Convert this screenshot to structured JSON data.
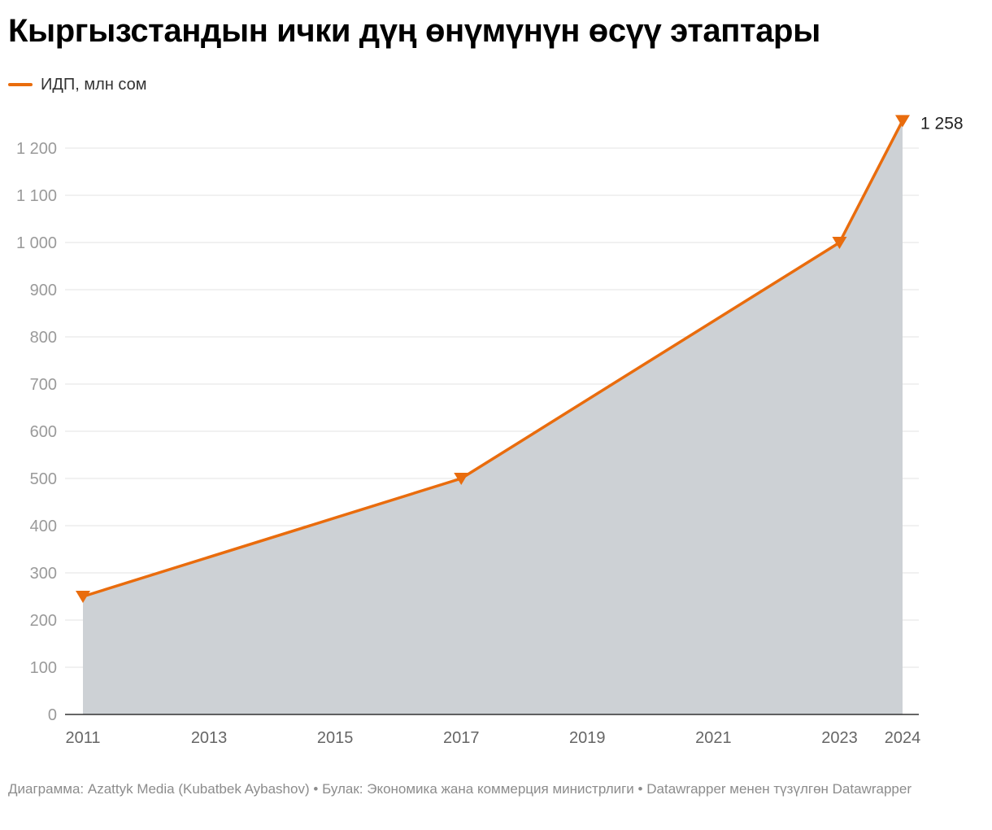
{
  "chart_data": {
    "type": "area",
    "title": "Кыргызстандын ички дүң өнүмүнүн өсүү этаптары",
    "series": [
      {
        "name": "ИДП, млн сом",
        "x": [
          2011,
          2017,
          2023,
          2024
        ],
        "values": [
          250,
          500,
          1000,
          1258
        ],
        "marker": "triangle-down"
      }
    ],
    "annotations": [
      {
        "x": 2024,
        "y": 1258,
        "text": "1 258"
      }
    ],
    "x_ticks": [
      2011,
      2013,
      2015,
      2017,
      2019,
      2021,
      2023,
      2024
    ],
    "y_ticks": [
      {
        "value": 0,
        "label": "0"
      },
      {
        "value": 100,
        "label": "100"
      },
      {
        "value": 200,
        "label": "200"
      },
      {
        "value": 300,
        "label": "300"
      },
      {
        "value": 400,
        "label": "400"
      },
      {
        "value": 500,
        "label": "500"
      },
      {
        "value": 600,
        "label": "600"
      },
      {
        "value": 700,
        "label": "700"
      },
      {
        "value": 800,
        "label": "800"
      },
      {
        "value": 900,
        "label": "900"
      },
      {
        "value": 1000,
        "label": "1 000"
      },
      {
        "value": 1100,
        "label": "1 100"
      },
      {
        "value": 1200,
        "label": "1 200"
      }
    ],
    "xlim": [
      2011,
      2024
    ],
    "ylim": [
      0,
      1200
    ],
    "grid": true,
    "legend": "top-left",
    "colors": {
      "line": "#e96c0d",
      "area": "#cdd1d5",
      "grid": "#e3e3e3",
      "axis": "#333333",
      "y_tick_text": "#9a9a9a",
      "x_tick_text": "#666666",
      "annotation_text": "#222222"
    }
  },
  "footer": {
    "byline": "Диаграмма: Azattyk Media (Kubatbek Aybashov)",
    "separator": "•",
    "source": "Булак: Экономика жана коммерция министрлиги",
    "credit": "Datawrapper менен түзүлгөн Datawrapper"
  }
}
